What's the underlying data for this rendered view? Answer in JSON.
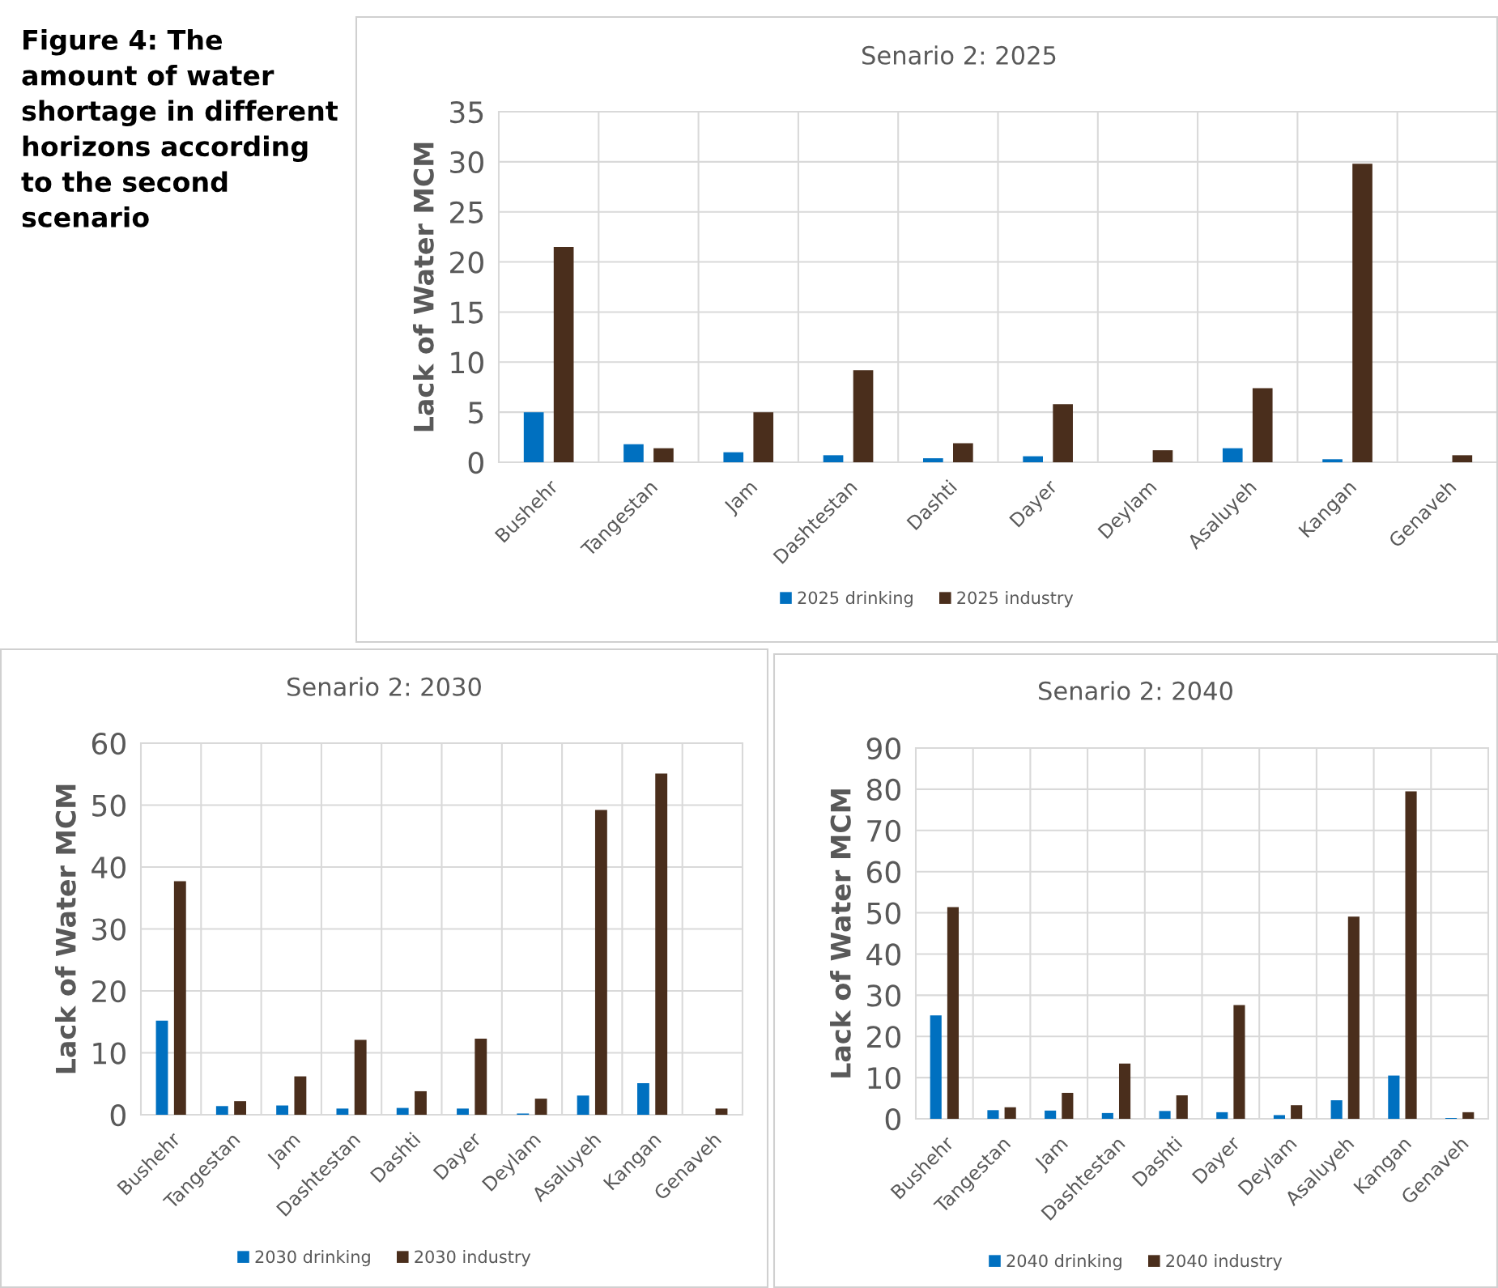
{
  "chart_data": [
    {
      "type": "bar",
      "title": "Senario 2: 2025",
      "ylabel": "Lack of Water MCM",
      "annotations": [
        "Figure 4: The amount of water shortage in different horizons according to the second scenario"
      ],
      "categories": [
        "Bushehr",
        "Tangestan",
        "Jam",
        "Dashtestan",
        "Dashti",
        "Dayer",
        "Deylam",
        "Asaluyeh",
        "Kangan",
        "Genaveh"
      ],
      "series": [
        {
          "name": "2025 drinking",
          "color": "#0070c0",
          "values": [
            5.0,
            1.8,
            1.0,
            0.7,
            0.4,
            0.6,
            0,
            1.4,
            0.3,
            0
          ]
        },
        {
          "name": "2025 industry",
          "color": "#4a2e1c",
          "values": [
            21.5,
            1.4,
            5.0,
            9.2,
            1.9,
            5.8,
            1.2,
            7.4,
            29.8,
            0.7
          ]
        }
      ],
      "ylim": [
        0,
        35
      ],
      "yticks": [
        0,
        5,
        10,
        15,
        20,
        25,
        30,
        35
      ],
      "grid": true,
      "legend": "bottom"
    },
    {
      "type": "bar",
      "title": "Senario 2: 2030",
      "ylabel": "Lack of Water MCM",
      "categories": [
        "Bushehr",
        "Tangestan",
        "Jam",
        "Dashtestan",
        "Dashti",
        "Dayer",
        "Deylam",
        "Asaluyeh",
        "Kangan",
        "Genaveh"
      ],
      "series": [
        {
          "name": "2030 drinking",
          "color": "#0070c0",
          "values": [
            15.2,
            1.4,
            1.5,
            1.0,
            1.1,
            1.0,
            0.2,
            3.1,
            5.1,
            0
          ]
        },
        {
          "name": "2030 industry",
          "color": "#4a2e1c",
          "values": [
            37.7,
            2.2,
            6.2,
            12.1,
            3.8,
            12.3,
            2.6,
            49.2,
            55.1,
            1.0
          ]
        }
      ],
      "ylim": [
        0,
        60
      ],
      "yticks": [
        0,
        10,
        20,
        30,
        40,
        50,
        60
      ],
      "grid": true,
      "legend": "bottom"
    },
    {
      "type": "bar",
      "title": "Senario 2: 2040",
      "ylabel": "Lack of Water MCM",
      "categories": [
        "Bushehr",
        "Tangestan",
        "Jam",
        "Dashtestan",
        "Dashti",
        "Dayer",
        "Deylam",
        "Asaluyeh",
        "Kangan",
        "Genaveh"
      ],
      "series": [
        {
          "name": "2040 drinking",
          "color": "#0070c0",
          "values": [
            25.1,
            2.1,
            2.0,
            1.4,
            1.9,
            1.6,
            0.9,
            4.5,
            10.5,
            0.2
          ]
        },
        {
          "name": "2040 industry",
          "color": "#4a2e1c",
          "values": [
            51.4,
            2.8,
            6.3,
            13.4,
            5.7,
            27.6,
            3.3,
            49.1,
            79.5,
            1.6
          ]
        }
      ],
      "ylim": [
        0,
        90
      ],
      "yticks": [
        0,
        10,
        20,
        30,
        40,
        50,
        60,
        70,
        80,
        90
      ],
      "grid": true,
      "legend": "bottom"
    }
  ]
}
